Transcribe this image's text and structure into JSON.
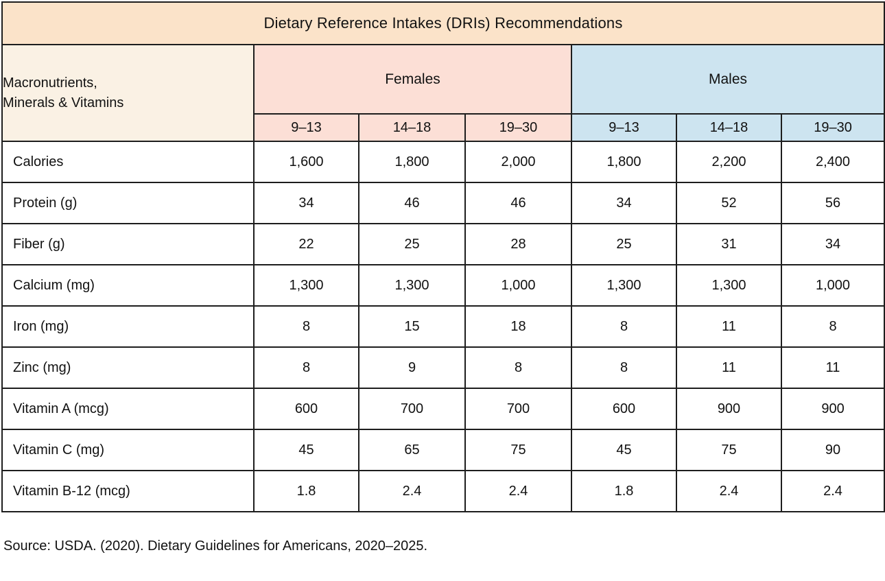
{
  "page": {
    "title": "Dietary Reference Intakes (DRIs) Recommendations",
    "source_note": "Source: USDA. (2020). Dietary Guidelines for Americans, 2020–2025."
  },
  "table": {
    "corner_header": "Macronutrients,\nMinerals & Vitamins",
    "group_headers": [
      {
        "label": "Females",
        "ages": [
          "9–13",
          "14–18",
          "19–30"
        ]
      },
      {
        "label": "Males",
        "ages": [
          "9–13",
          "14–18",
          "19–30"
        ]
      }
    ],
    "rows": [
      {
        "label": "Calories",
        "values": [
          "1,600",
          "1,800",
          "2,000",
          "1,800",
          "2,200",
          "2,400"
        ]
      },
      {
        "label": "Protein (g)",
        "values": [
          "34",
          "46",
          "46",
          "34",
          "52",
          "56"
        ]
      },
      {
        "label": "Fiber (g)",
        "values": [
          "22",
          "25",
          "28",
          "25",
          "31",
          "34"
        ]
      },
      {
        "label": "Calcium (mg)",
        "values": [
          "1,300",
          "1,300",
          "1,000",
          "1,300",
          "1,300",
          "1,000"
        ]
      },
      {
        "label": "Iron (mg)",
        "values": [
          "8",
          "15",
          "18",
          "8",
          "11",
          "8"
        ]
      },
      {
        "label": "Zinc (mg)",
        "values": [
          "8",
          "9",
          "8",
          "8",
          "11",
          "11"
        ]
      },
      {
        "label": "Vitamin A (mcg)",
        "values": [
          "600",
          "700",
          "700",
          "600",
          "900",
          "900"
        ]
      },
      {
        "label": "Vitamin C (mg)",
        "values": [
          "45",
          "65",
          "75",
          "45",
          "75",
          "90"
        ]
      },
      {
        "label": "Vitamin B-12 (mcg)",
        "values": [
          "1.8",
          "2.4",
          "2.4",
          "1.8",
          "2.4",
          "2.4"
        ]
      }
    ]
  },
  "colors": {
    "title_bg": "#fbe3c9",
    "corner_bg": "#faf1e4",
    "females_bg": "#fcdfd6",
    "males_bg": "#cde4f0",
    "cell_bg": "#ffffff",
    "border": "#1d1d1d",
    "text": "#111111"
  }
}
